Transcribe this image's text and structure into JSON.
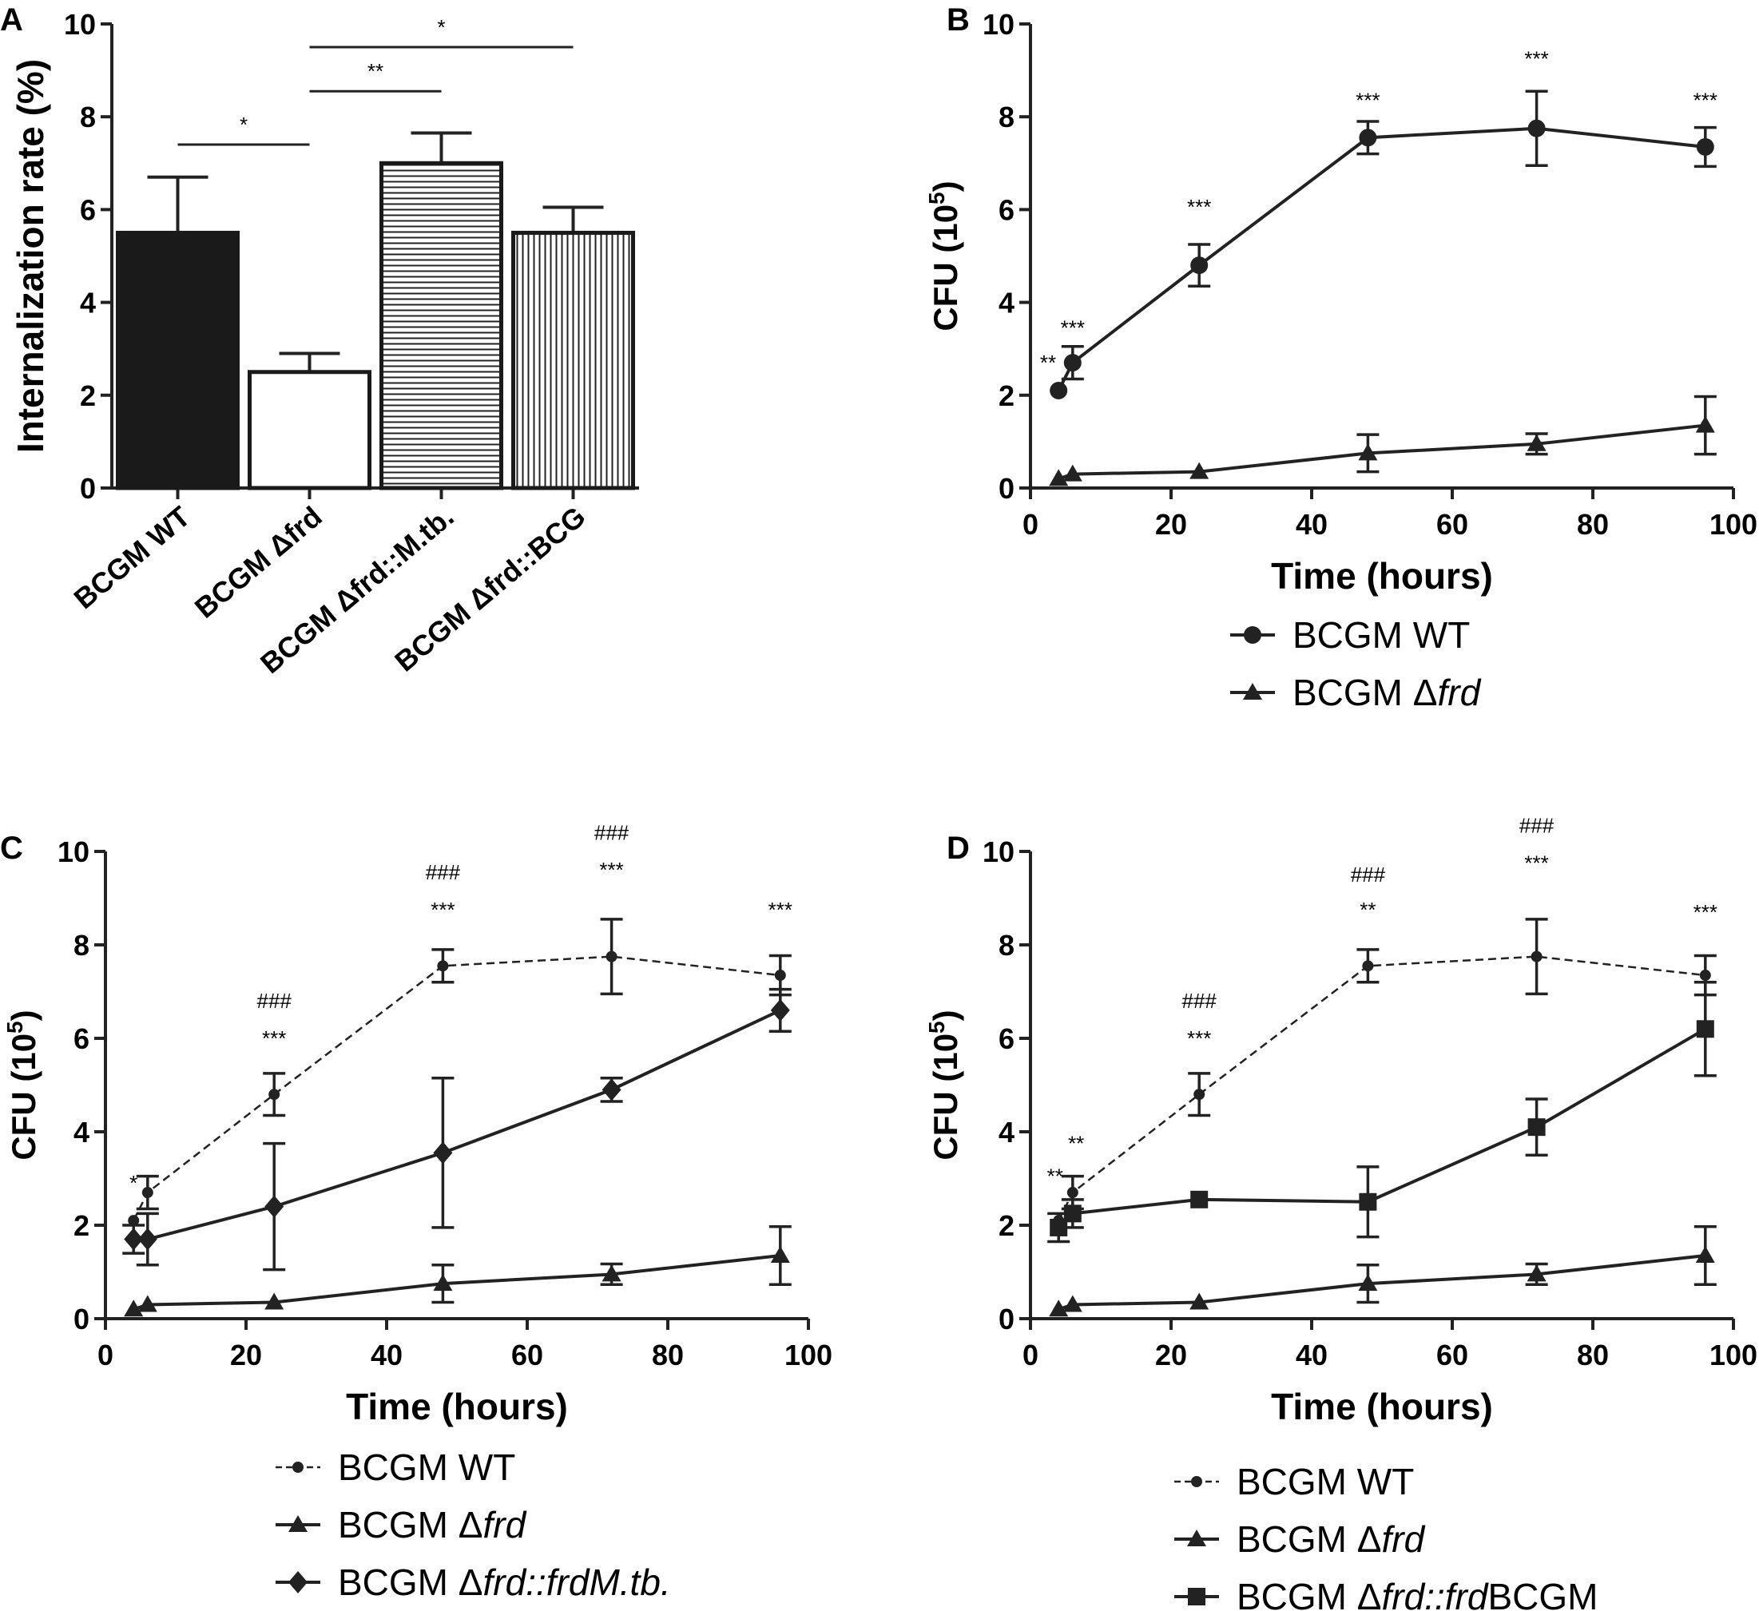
{
  "chart_data": [
    {
      "panel": "A",
      "type": "bar",
      "ylabel": "Internalization rate (%)",
      "ylim": [
        0,
        10
      ],
      "yticks": [
        "0",
        "2",
        "4",
        "6",
        "8",
        "10"
      ],
      "categories": [
        "BCGM WT",
        "BCGM Δfrd",
        "BCGM Δfrd::M.tb.",
        "BCGM Δfrd::BCG"
      ],
      "values": [
        5.5,
        2.5,
        7.0,
        5.5
      ],
      "errors": [
        1.2,
        0.4,
        0.65,
        0.55
      ],
      "fills": [
        "solid",
        "white",
        "horizontal",
        "vertical"
      ],
      "significance": [
        {
          "from": 0,
          "to": 1,
          "level": 7.4,
          "label": "*"
        },
        {
          "from": 1,
          "to": 2,
          "level": 8.55,
          "label": "**"
        },
        {
          "from": 1,
          "to": 3,
          "level": 9.5,
          "label": "*"
        }
      ]
    },
    {
      "panel": "B",
      "type": "line",
      "xlabel": "Time (hours)",
      "ylabel": "CFU (10",
      "ylabel_sup": "5",
      "ylabel_close": ")",
      "xlim": [
        0,
        100
      ],
      "ylim": [
        0,
        10
      ],
      "xticks": [
        "0",
        "20",
        "40",
        "60",
        "80",
        "100"
      ],
      "yticks": [
        "0",
        "2",
        "4",
        "6",
        "8",
        "10"
      ],
      "series": [
        {
          "name": "BCGM WT",
          "marker": "circle",
          "dash": false,
          "x": [
            4,
            6,
            24,
            48,
            72,
            96
          ],
          "y": [
            2.1,
            2.7,
            4.8,
            7.55,
            7.75,
            7.35
          ],
          "err": [
            0,
            0.35,
            0.45,
            0.35,
            0.8,
            0.42
          ]
        },
        {
          "name": "BCGM Δfrd",
          "marker": "triangle",
          "dash": false,
          "x": [
            4,
            6,
            24,
            48,
            72,
            96
          ],
          "y": [
            0.2,
            0.3,
            0.35,
            0.75,
            0.95,
            1.35
          ],
          "err": [
            0,
            0,
            0,
            0.4,
            0.22,
            0.62
          ]
        }
      ],
      "annotations": [
        {
          "x": 2.5,
          "y": 2.55,
          "label": "**"
        },
        {
          "x": 6,
          "y": 3.3,
          "label": "***"
        },
        {
          "x": 24,
          "y": 5.9,
          "label": "***"
        },
        {
          "x": 48,
          "y": 8.2,
          "label": "***"
        },
        {
          "x": 72,
          "y": 9.1,
          "label": "***"
        },
        {
          "x": 96,
          "y": 8.2,
          "label": "***"
        }
      ],
      "legend": [
        {
          "marker": "circle",
          "dash": false,
          "pre": "BCGM ",
          "italic": "",
          "post": "WT"
        },
        {
          "marker": "triangle",
          "dash": false,
          "pre": "BCGM Δ",
          "italic": "frd",
          "post": ""
        }
      ]
    },
    {
      "panel": "C",
      "type": "line",
      "xlabel": "Time (hours)",
      "ylabel": "CFU (10",
      "ylabel_sup": "5",
      "ylabel_close": ")",
      "xlim": [
        0,
        100
      ],
      "ylim": [
        0,
        10
      ],
      "xticks": [
        "0",
        "20",
        "40",
        "60",
        "80",
        "100"
      ],
      "yticks": [
        "0",
        "2",
        "4",
        "6",
        "8",
        "10"
      ],
      "series": [
        {
          "name": "BCGM WT",
          "marker": "smallcircle",
          "dash": true,
          "x": [
            4,
            6,
            24,
            48,
            72,
            96
          ],
          "y": [
            2.1,
            2.7,
            4.8,
            7.55,
            7.75,
            7.35
          ],
          "err": [
            0,
            0.35,
            0.45,
            0.35,
            0.8,
            0.42
          ]
        },
        {
          "name": "BCGM Δfrd",
          "marker": "triangle",
          "dash": false,
          "x": [
            4,
            6,
            24,
            48,
            72,
            96
          ],
          "y": [
            0.2,
            0.3,
            0.35,
            0.75,
            0.95,
            1.35
          ],
          "err": [
            0,
            0,
            0,
            0.4,
            0.22,
            0.62
          ]
        },
        {
          "name": "BCGM Δfrd::frdM.tb.",
          "marker": "diamond",
          "dash": false,
          "x": [
            4,
            6,
            24,
            48,
            72,
            96
          ],
          "y": [
            1.7,
            1.7,
            2.4,
            3.55,
            4.9,
            6.6
          ],
          "err": [
            0.3,
            0.55,
            1.35,
            1.6,
            0.25,
            0.45
          ]
        }
      ],
      "annotations": [
        {
          "x": 4,
          "y": 2.75,
          "label": "*"
        },
        {
          "x": 24,
          "y": 5.85,
          "label": "***"
        },
        {
          "x": 24,
          "y": 6.65,
          "label": "###"
        },
        {
          "x": 48,
          "y": 8.6,
          "label": "***"
        },
        {
          "x": 48,
          "y": 9.4,
          "label": "###"
        },
        {
          "x": 72,
          "y": 9.45,
          "label": "***"
        },
        {
          "x": 72,
          "y": 10.25,
          "label": "###"
        },
        {
          "x": 96,
          "y": 8.6,
          "label": "***"
        }
      ],
      "legend": [
        {
          "marker": "smallcircle",
          "dash": true,
          "pre": "BCGM ",
          "italic": "",
          "post": "WT"
        },
        {
          "marker": "triangle",
          "dash": false,
          "pre": "BCGM Δ",
          "italic": "frd",
          "post": ""
        },
        {
          "marker": "diamond",
          "dash": false,
          "pre": "BCGM Δ",
          "italic": "frd::frdM.tb.",
          "post": ""
        }
      ]
    },
    {
      "panel": "D",
      "type": "line",
      "xlabel": "Time (hours)",
      "ylabel": "CFU (10",
      "ylabel_sup": "5",
      "ylabel_close": ")",
      "xlim": [
        0,
        100
      ],
      "ylim": [
        0,
        10
      ],
      "xticks": [
        "0",
        "20",
        "40",
        "60",
        "80",
        "100"
      ],
      "yticks": [
        "0",
        "2",
        "4",
        "6",
        "8",
        "10"
      ],
      "series": [
        {
          "name": "BCGM WT",
          "marker": "smallcircle",
          "dash": true,
          "x": [
            4,
            6,
            24,
            48,
            72,
            96
          ],
          "y": [
            2.1,
            2.7,
            4.8,
            7.55,
            7.75,
            7.35
          ],
          "err": [
            0,
            0.35,
            0.45,
            0.35,
            0.8,
            0.42
          ]
        },
        {
          "name": "BCGM Δfrd",
          "marker": "triangle",
          "dash": false,
          "x": [
            4,
            6,
            24,
            48,
            72,
            96
          ],
          "y": [
            0.2,
            0.3,
            0.35,
            0.75,
            0.95,
            1.35
          ],
          "err": [
            0,
            0,
            0,
            0.4,
            0.22,
            0.62
          ]
        },
        {
          "name": "BCGM Δfrd::frdBCGM",
          "marker": "square",
          "dash": false,
          "x": [
            4,
            6,
            24,
            48,
            72,
            96
          ],
          "y": [
            1.95,
            2.25,
            2.55,
            2.5,
            4.1,
            6.2
          ],
          "err": [
            0.3,
            0.3,
            0,
            0.75,
            0.6,
            1.0
          ]
        }
      ],
      "annotations": [
        {
          "x": 3.5,
          "y": 2.9,
          "label": "**"
        },
        {
          "x": 6.5,
          "y": 3.6,
          "label": "**"
        },
        {
          "x": 24,
          "y": 5.85,
          "label": "***"
        },
        {
          "x": 24,
          "y": 6.65,
          "label": "###"
        },
        {
          "x": 48,
          "y": 8.6,
          "label": "**"
        },
        {
          "x": 48,
          "y": 9.35,
          "label": "###"
        },
        {
          "x": 72,
          "y": 9.6,
          "label": "***"
        },
        {
          "x": 72,
          "y": 10.4,
          "label": "###"
        },
        {
          "x": 96,
          "y": 8.55,
          "label": "***"
        }
      ],
      "legend": [
        {
          "marker": "smallcircle",
          "dash": true,
          "pre": "BCGM ",
          "italic": "",
          "post": "WT"
        },
        {
          "marker": "triangle",
          "dash": false,
          "pre": "BCGM Δ",
          "italic": "frd",
          "post": ""
        },
        {
          "marker": "square",
          "dash": false,
          "pre": "BCGM Δ",
          "italic": "frd::frd",
          "post": "BCGM"
        }
      ]
    }
  ]
}
